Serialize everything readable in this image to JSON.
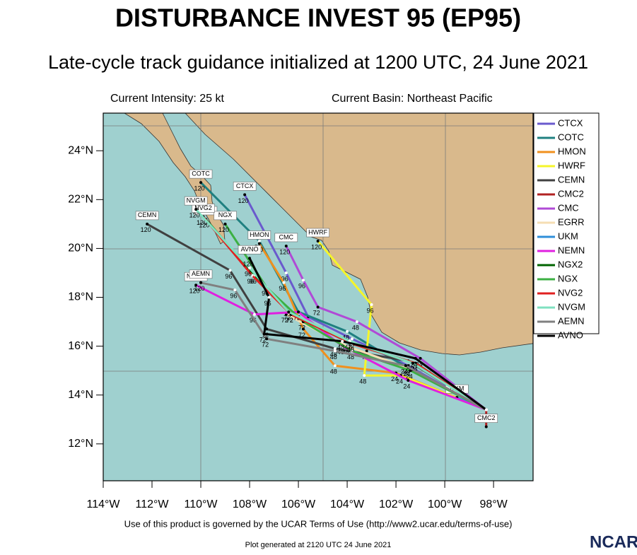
{
  "chart_data": {
    "type": "track-map",
    "title": "DISTURBANCE INVEST 95 (EP95)",
    "subtitle": "Late-cycle track guidance initialized at 1200 UTC, 24 June 2021",
    "intensity": "Current Intensity: 25 kt",
    "basin": "Current Basin: Northeast Pacific",
    "footer": "Use of this product is governed by the UCAR Terms of Use (http://www2.ucar.edu/terms-of-use)",
    "generated": "Plot generated at 2120 UTC   24 June 2021",
    "logo": "NCAR",
    "hours": [
      0,
      24,
      48,
      72,
      96,
      120
    ],
    "xlim": [
      -114,
      -96.38
    ],
    "ylim": [
      10.49,
      25.54
    ],
    "xticks": [
      {
        "value": -114,
        "label": "114°W"
      },
      {
        "value": -112,
        "label": "112°W"
      },
      {
        "value": -110,
        "label": "110°W"
      },
      {
        "value": -108,
        "label": "108°W"
      },
      {
        "value": -106,
        "label": "106°W"
      },
      {
        "value": -104,
        "label": "104°W"
      },
      {
        "value": -102,
        "label": "102°W"
      },
      {
        "value": -100,
        "label": "100°W"
      },
      {
        "value": -98,
        "label": "98°W"
      }
    ],
    "yticks": [
      {
        "value": 12,
        "label": "12°N"
      },
      {
        "value": 14,
        "label": "14°N"
      },
      {
        "value": 16,
        "label": "16°N"
      },
      {
        "value": 18,
        "label": "18°N"
      },
      {
        "value": 20,
        "label": "20°N"
      },
      {
        "value": 22,
        "label": "22°N"
      },
      {
        "value": 24,
        "label": "24°N"
      }
    ],
    "series": [
      {
        "name": "CTCX",
        "color": "#6a5acd",
        "x": [
          -98.3,
          -101.5,
          -103.8,
          -105.6,
          -106.5,
          -108.2
        ],
        "values": [
          13.4,
          15.2,
          16.3,
          17.2,
          19.0,
          22.2
        ]
      },
      {
        "name": "COTC",
        "color": "#1f8080",
        "x": [
          -98.3,
          -101.5,
          -104.0,
          -106.0,
          -107.6,
          -110.0
        ],
        "values": [
          13.4,
          15.1,
          16.6,
          17.4,
          20.3,
          22.7
        ]
      },
      {
        "name": "HMON",
        "color": "#f0901e",
        "x": [
          -98.3,
          -102.0,
          -104.5,
          -105.8,
          -106.6,
          -107.6
        ],
        "values": [
          13.4,
          14.9,
          15.2,
          16.7,
          18.6,
          20.2
        ]
      },
      {
        "name": "HWRF",
        "color": "#f5f52a",
        "x": [
          -98.3,
          -101.8,
          -103.3,
          -103.2,
          -103.0,
          -105.2
        ],
        "values": [
          13.4,
          14.8,
          14.8,
          15.8,
          17.7,
          20.3
        ]
      },
      {
        "name": "CEMN",
        "color": "#404040",
        "x": [
          -98.3,
          -101.5,
          -104.5,
          -107.3,
          -108.8,
          -112.2
        ],
        "values": [
          13.4,
          15.4,
          15.9,
          16.7,
          19.1,
          21.0
        ]
      },
      {
        "name": "CMC2",
        "color": "#b22222",
        "x": [
          -98.3,
          -98.3
        ],
        "values": [
          13.4,
          12.7
        ]
      },
      {
        "name": "CMC",
        "color": "#b04ad6",
        "x": [
          -98.3,
          -101.0,
          -103.6,
          -105.2,
          -105.8,
          -106.5
        ],
        "values": [
          13.4,
          15.5,
          17.0,
          17.6,
          18.7,
          20.1
        ]
      },
      {
        "name": "EGRR",
        "color": "#f5deb3",
        "x": [
          -98.3,
          -101.5,
          -104.0,
          -106.5
        ],
        "values": [
          13.4,
          15.1,
          16.0,
          17.3
        ]
      },
      {
        "name": "UKM",
        "color": "#2f8fd9",
        "x": [
          -98.3,
          -99.5
        ],
        "values": [
          13.4,
          13.9
        ]
      },
      {
        "name": "NEMN",
        "color": "#e020e0",
        "x": [
          -98.3,
          -101.5,
          -104.2,
          -106.0,
          -107.8,
          -110.2
        ],
        "values": [
          13.4,
          14.6,
          16.0,
          17.4,
          17.3,
          18.5
        ]
      },
      {
        "name": "NGX2",
        "color": "#006400",
        "x": [
          -98.3,
          -101.2,
          -103.8,
          -106.3,
          -107.8,
          -109.8
        ],
        "values": [
          13.4,
          15.3,
          16.1,
          17.3,
          18.9,
          21.2
        ]
      },
      {
        "name": "NGX",
        "color": "#3cb043",
        "x": [
          -98.3,
          -101.4,
          -103.8,
          -105.8,
          -107.3,
          -109.0
        ],
        "values": [
          13.4,
          15.0,
          15.8,
          17.0,
          18.4,
          21.0
        ]
      },
      {
        "name": "NVG2",
        "color": "#e02020",
        "x": [
          -98.3,
          -101.2,
          -103.8,
          -106.3,
          -107.9,
          -109.9
        ],
        "values": [
          13.4,
          15.3,
          16.1,
          17.3,
          18.9,
          21.3
        ]
      },
      {
        "name": "NVGM",
        "color": "#7fe0c0",
        "x": [
          -98.3,
          -101.3,
          -103.9,
          -106.4,
          -108.0,
          -110.2
        ],
        "values": [
          13.4,
          15.3,
          16.2,
          17.4,
          19.2,
          21.6
        ]
      },
      {
        "name": "AEMN",
        "color": "#808080",
        "x": [
          -98.3,
          -101.6,
          -104.5,
          -107.3,
          -108.6,
          -110.0
        ],
        "values": [
          13.4,
          15.2,
          15.8,
          16.3,
          18.3,
          18.6
        ]
      },
      {
        "name": "AVNO",
        "color": "#000000",
        "x": [
          -98.3,
          -101.2,
          -104.2,
          -107.4,
          -107.2,
          -108.0
        ],
        "values": [
          13.4,
          15.5,
          16.2,
          16.5,
          18.0,
          19.6
        ]
      }
    ]
  }
}
